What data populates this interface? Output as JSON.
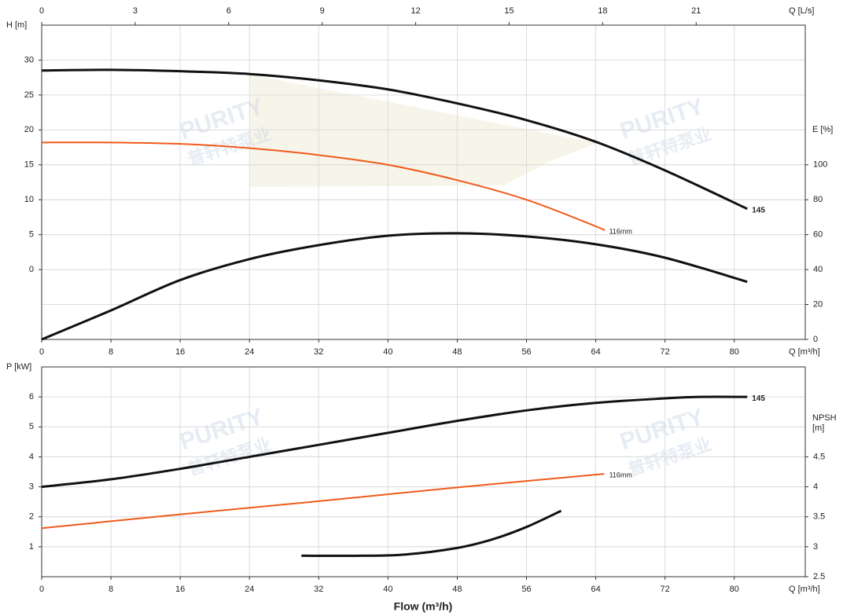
{
  "chart_data": [
    {
      "type": "line",
      "xlabel": "Q [m³/h]",
      "x2label": "Q [L/s]",
      "ylabel": "H [m]",
      "y2label": "E [%]",
      "xlim": [
        0,
        88.2
      ],
      "xticks": [
        0,
        8,
        16,
        24,
        32,
        40,
        48,
        56,
        64,
        72,
        80
      ],
      "x2lim": [
        0,
        24.5
      ],
      "x2ticks": [
        0,
        3,
        6,
        9,
        12,
        15,
        18,
        21
      ],
      "ylim": [
        -10,
        35
      ],
      "yticks": [
        0,
        5,
        10,
        15,
        20,
        25,
        30
      ],
      "y2lim": [
        0,
        180
      ],
      "y2ticks": [
        0,
        20,
        40,
        60,
        80,
        100
      ],
      "grid": true,
      "series": [
        {
          "name": "145",
          "color": "#111111",
          "x": [
            0,
            8,
            16,
            24,
            32,
            40,
            48,
            56,
            64,
            72,
            81.5
          ],
          "values": [
            28.5,
            28.6,
            28.4,
            28,
            27.1,
            25.8,
            23.8,
            21.4,
            18.3,
            14.2,
            8.7
          ]
        },
        {
          "name": "116mm",
          "color": "#f05a1a",
          "x": [
            0,
            8,
            16,
            24,
            32,
            40,
            48,
            56,
            64,
            65
          ],
          "values": [
            18.2,
            18.2,
            18,
            17.4,
            16.4,
            15,
            12.8,
            10,
            6.2,
            5.6
          ]
        },
        {
          "color": "#111111",
          "axis": "y2",
          "x": [
            0,
            8,
            16,
            24,
            32,
            40,
            48,
            56,
            64,
            72,
            81.5
          ],
          "values": [
            0,
            16.6,
            34,
            46,
            54,
            59.4,
            60.8,
            59,
            54.5,
            46.8,
            33
          ]
        }
      ]
    },
    {
      "type": "line",
      "xlabel": "Q [m³/h]",
      "ylabel": "P [kW]",
      "y2label": "NPSH [m]",
      "title": "Flow (m³/h)",
      "xlim": [
        0,
        88.2
      ],
      "xticks": [
        0,
        8,
        16,
        24,
        32,
        40,
        48,
        56,
        64,
        72,
        80
      ],
      "ylim": [
        0,
        7
      ],
      "yticks": [
        1,
        2,
        3,
        4,
        5,
        6
      ],
      "y2lim": [
        2.5,
        6
      ],
      "y2ticks": [
        2.5,
        3,
        3.5,
        4,
        4.5
      ],
      "grid": true,
      "series": [
        {
          "name": "145",
          "color": "#111111",
          "x": [
            0,
            8,
            16,
            24,
            32,
            40,
            48,
            56,
            64,
            72,
            76,
            81.5
          ],
          "values": [
            3,
            3.25,
            3.6,
            4,
            4.4,
            4.8,
            5.2,
            5.55,
            5.8,
            5.95,
            6,
            6
          ]
        },
        {
          "name": "116mm",
          "color": "#f05a1a",
          "x": [
            0,
            16,
            32,
            48,
            65
          ],
          "values": [
            1.62,
            2.08,
            2.52,
            2.98,
            3.43
          ]
        },
        {
          "color": "#111111",
          "axis": "y2",
          "x": [
            30,
            37,
            42,
            48,
            52,
            56,
            60
          ],
          "values": [
            2.85,
            2.85,
            2.87,
            2.98,
            3.12,
            3.33,
            3.6
          ]
        }
      ]
    }
  ],
  "watermark": {
    "brand": "PURITY",
    "cn": "普轩特泵业"
  }
}
